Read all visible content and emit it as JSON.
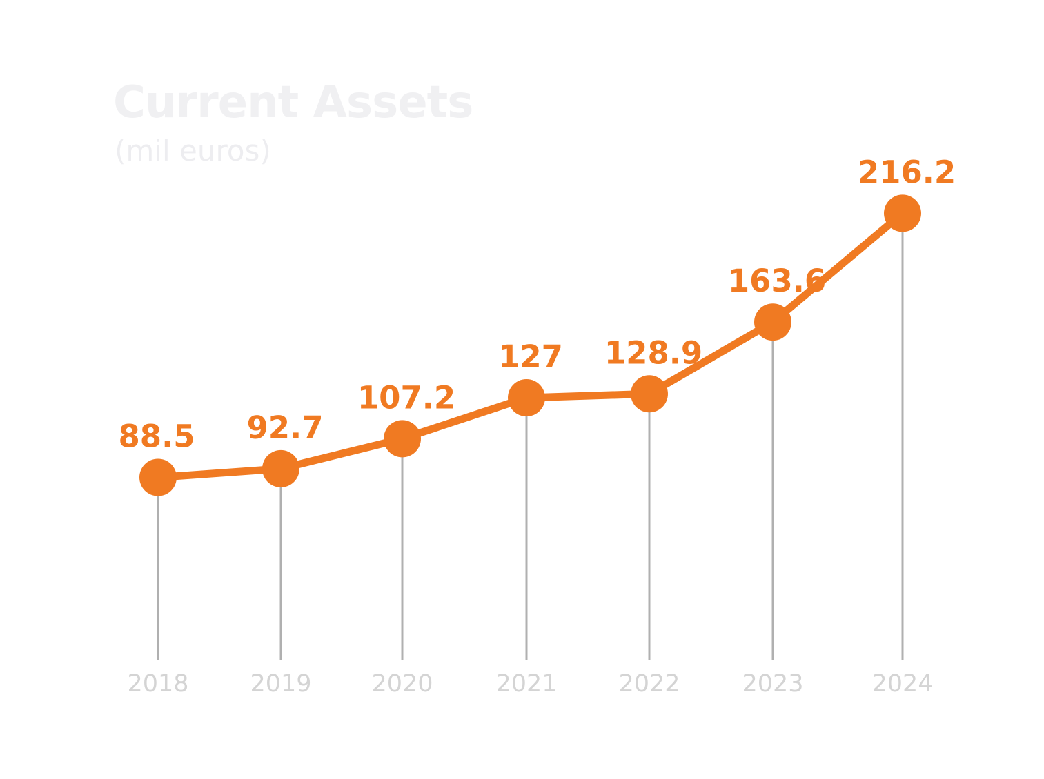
{
  "chart_data": {
    "type": "line",
    "title": "Current Assets",
    "subtitle": "(mil euros)",
    "categories": [
      "2018",
      "2019",
      "2020",
      "2021",
      "2022",
      "2023",
      "2024"
    ],
    "series": [
      {
        "values": [
          88.5,
          92.7,
          107.2,
          127,
          128.9,
          163.6,
          216.2
        ]
      }
    ],
    "data_labels": [
      "88.5",
      "92.7",
      "107.2",
      "127",
      "128.9",
      "163.6",
      "216.2"
    ],
    "xlabel": "",
    "ylabel": "",
    "ylim": [
      0,
      260
    ],
    "grid": false,
    "legend": "none"
  },
  "colors": {
    "line": "#f07a22",
    "data_label": "#f07a22",
    "drop_line": "#b0b0b0",
    "tick_label": "#d4d4d4",
    "title": "#f0f0f2",
    "subtitle": "#ededf0"
  }
}
